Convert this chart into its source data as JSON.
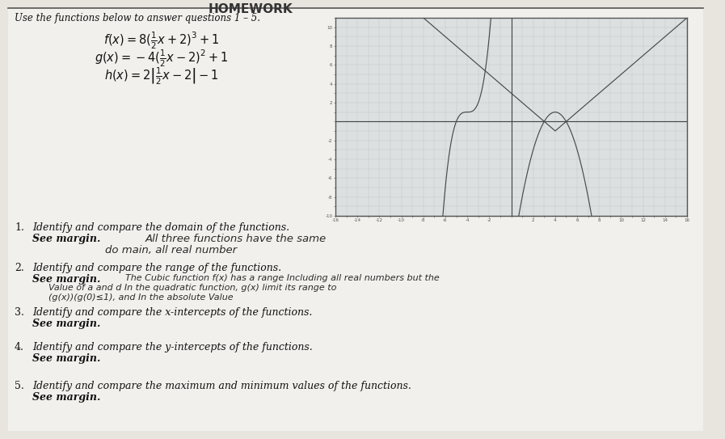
{
  "title_text": "Use the functions below to answer questions 1 – 5.",
  "fx_latex": "$f(x) = 8(\\frac{1}{2}x + 2)^3 + 1$",
  "gx_latex": "$g(x) = -4(\\frac{1}{2}x - 2)^2 + 1$",
  "hx_latex": "$h(x) = 2\\left|\\frac{1}{2}x - 2\\right| - 1$",
  "questions": [
    {
      "num": "1.",
      "q": "Identify and compare the domain of the functions.",
      "a": "See margin."
    },
    {
      "num": "2.",
      "q": "Identify and compare the range of the functions.",
      "a": "See margin."
    },
    {
      "num": "3.",
      "q": "Identify and compare the x-intercepts of the functions.",
      "a": "See margin."
    },
    {
      "num": "4.",
      "q": "Identify and compare the y-intercepts of the functions.",
      "a": "See margin."
    },
    {
      "num": "5.",
      "q": "Identify and compare the maximum and minimum values of the functions.",
      "a": "See margin."
    }
  ],
  "hw1_line1": "All three functions have the same",
  "hw1_line2": "do main, all real number",
  "hw2_line0": "See margin.",
  "hw2_line1": "The Cubic function f(x) has a range Including all real numbers but the",
  "hw2_line2": "Value of a and d In the quadratic function, g(x) limit its range to",
  "hw2_line3": "(g(x))(g(0)≤1), and In the absolute Value",
  "graph": {
    "xmin": -16,
    "xmax": 16,
    "ymin": -10,
    "ymax": 11,
    "bg_color": "#dce0e0",
    "grid_color": "#c0c4c4",
    "curve_color": "#4a4a4a"
  },
  "page_bg": "#e8e4de",
  "paper_bg": "#f2f0ed",
  "header_color": "#1a1a1a",
  "text_color": "#111111",
  "hand_color": "#2a2a2a"
}
